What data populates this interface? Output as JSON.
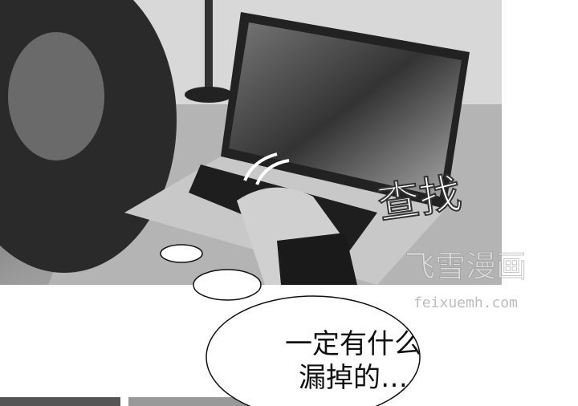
{
  "panel": {
    "sound_effect": "查找",
    "speech": {
      "line1": "一定有什么",
      "line2": "漏掉的…"
    },
    "watermark": {
      "title": "飞雪漫画",
      "url": "feixuemh.com"
    }
  }
}
